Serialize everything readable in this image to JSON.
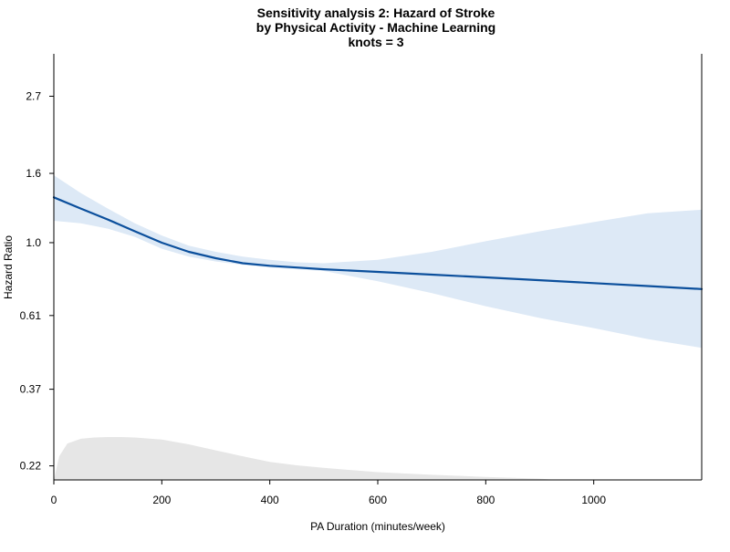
{
  "chart_data": {
    "type": "line",
    "title_lines": [
      "Sensitivity analysis 2: Hazard of Stroke",
      "by Physical Activity - Machine Learning",
      "knots = 3"
    ],
    "xlabel": "PA Duration (minutes/week)",
    "ylabel": "Hazard Ratio",
    "xlim": [
      0,
      1200
    ],
    "ylim": [
      0.2,
      3.6
    ],
    "y_scale": "log",
    "x_ticks": [
      0,
      200,
      400,
      600,
      800,
      1000
    ],
    "x_tick_labels": [
      "0",
      "200",
      "400",
      "600",
      "800",
      "1000"
    ],
    "y_ticks": [
      0.22,
      0.37,
      0.61,
      1.0,
      1.6,
      2.7
    ],
    "y_tick_labels": [
      "0.22",
      "0.37",
      "0.61",
      "1.0",
      "1.6",
      "2.7"
    ],
    "grid": false,
    "colors": {
      "line": "#0b4f9c",
      "ci_band": "#dde9f6",
      "density": "#e6e6e6",
      "axis": "#000000"
    },
    "series": [
      {
        "x": [
          0,
          50,
          100,
          150,
          200,
          250,
          300,
          350,
          400,
          450,
          500,
          600,
          700,
          800,
          900,
          1000,
          1100,
          1200
        ],
        "y": [
          1.36,
          1.26,
          1.17,
          1.08,
          1.0,
          0.94,
          0.9,
          0.87,
          0.855,
          0.845,
          0.835,
          0.82,
          0.805,
          0.79,
          0.775,
          0.76,
          0.745,
          0.73
        ],
        "ci_lower": [
          1.16,
          1.14,
          1.1,
          1.04,
          0.96,
          0.91,
          0.88,
          0.86,
          0.845,
          0.835,
          0.825,
          0.77,
          0.71,
          0.65,
          0.6,
          0.56,
          0.52,
          0.49
        ],
        "ci_upper": [
          1.58,
          1.4,
          1.26,
          1.14,
          1.05,
          0.98,
          0.94,
          0.91,
          0.89,
          0.875,
          0.87,
          0.89,
          0.94,
          1.01,
          1.08,
          1.15,
          1.22,
          1.25
        ]
      }
    ],
    "density": {
      "x": [
        0,
        10,
        25,
        50,
        75,
        100,
        125,
        150,
        200,
        250,
        300,
        350,
        400,
        450,
        500,
        600,
        700,
        800,
        900,
        920,
        1000,
        1100,
        1200
      ],
      "height": [
        0.0,
        0.55,
        0.85,
        0.96,
        0.99,
        1.0,
        1.0,
        0.99,
        0.94,
        0.83,
        0.69,
        0.55,
        0.42,
        0.34,
        0.28,
        0.18,
        0.12,
        0.07,
        0.03,
        0.01,
        0.0,
        0.0,
        0.0
      ]
    }
  }
}
